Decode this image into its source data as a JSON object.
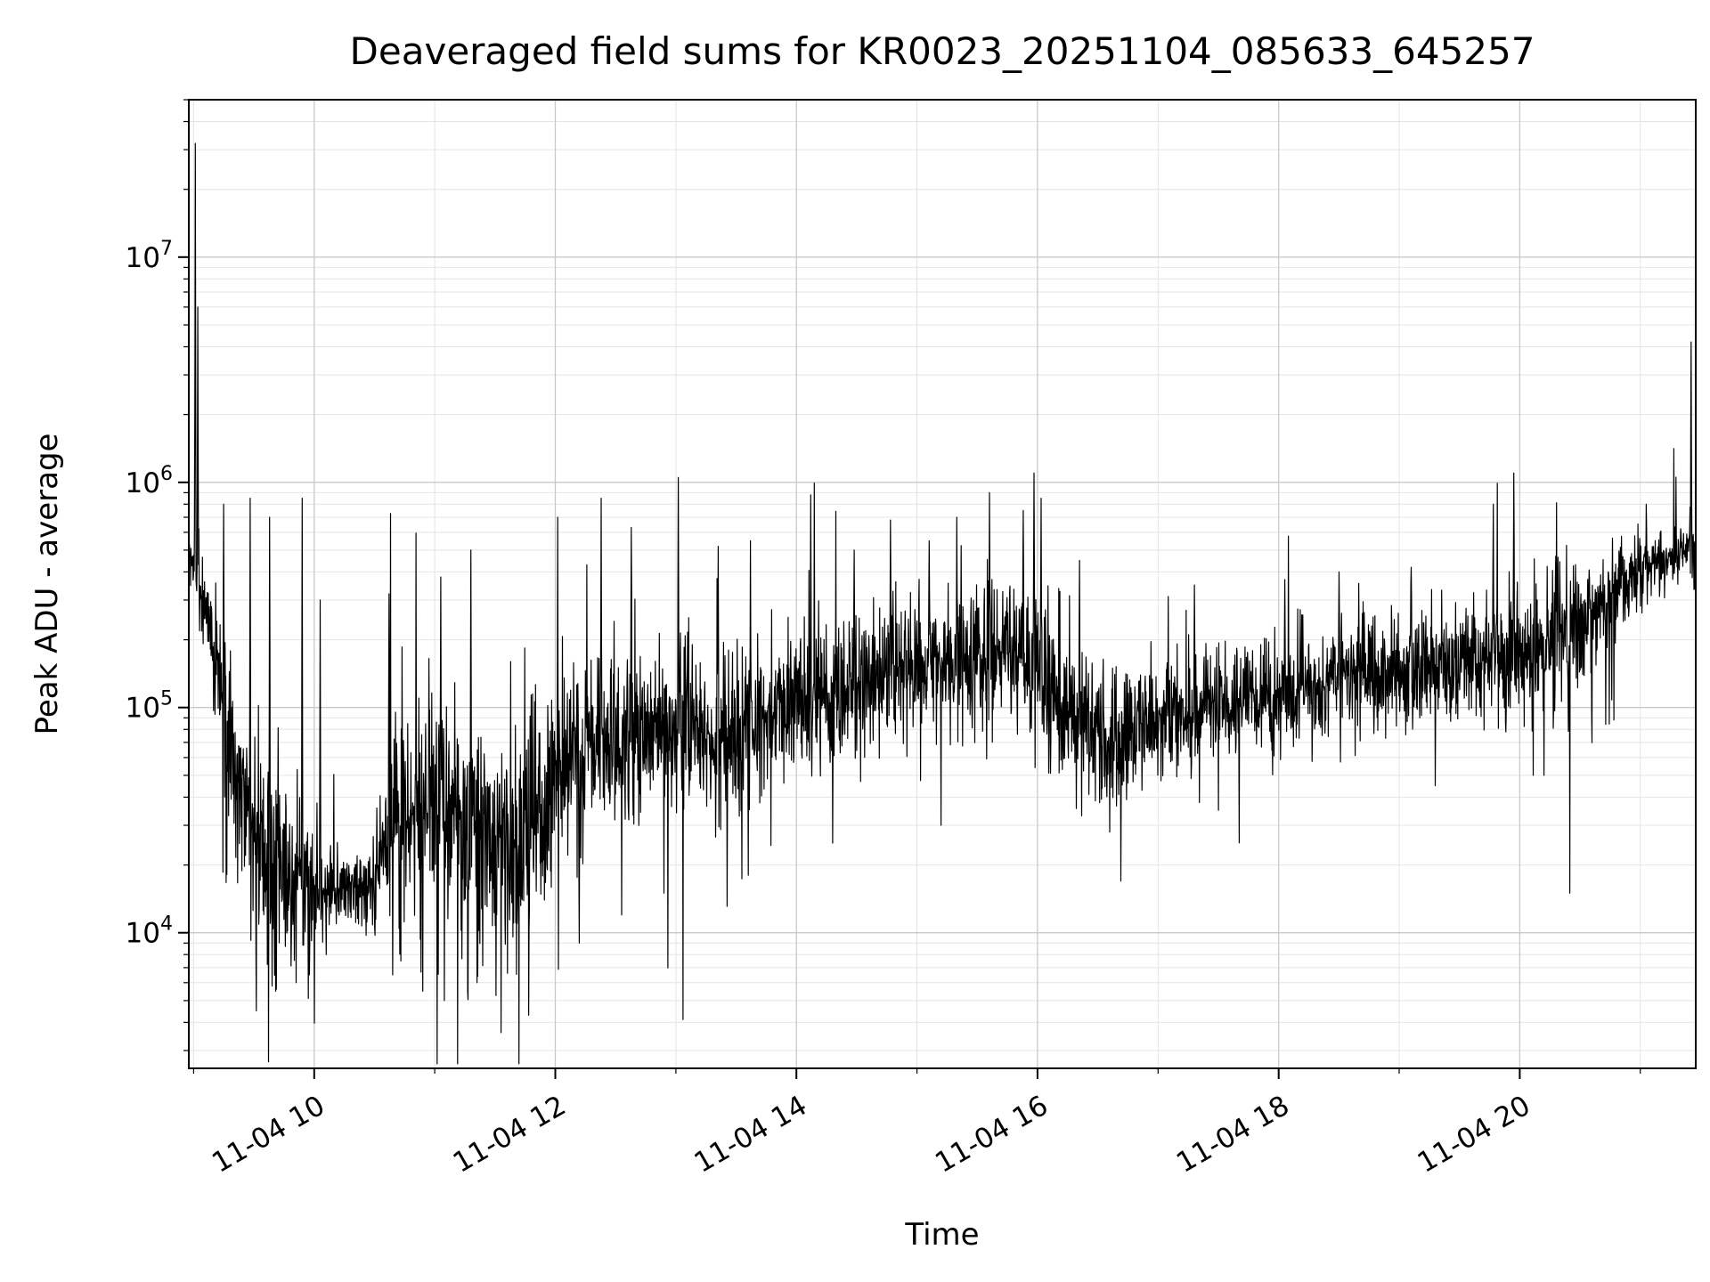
{
  "figure": {
    "background": "#ffffff"
  },
  "chart_data": {
    "type": "line",
    "title": "Deaveraged field sums for KR0023_20251104_085633_645257",
    "xlabel": "Time",
    "ylabel": "Peak ADU - average",
    "legend": null,
    "grid": {
      "on": true,
      "which": "both",
      "major": "#c9c9c9",
      "minor": "#e4e4e4"
    },
    "colors": {
      "series": "#000000",
      "axes": "#000000",
      "background": "#ffffff"
    },
    "x_unit": "hour of day on 2025-11-04",
    "x_range": [
      8.96,
      21.46
    ],
    "y_scale": "log",
    "y_log_range": [
      2500,
      50000000
    ],
    "x_ticks": [
      {
        "hour": 10,
        "label": "11-04 10"
      },
      {
        "hour": 12,
        "label": "11-04 12"
      },
      {
        "hour": 14,
        "label": "11-04 14"
      },
      {
        "hour": 16,
        "label": "11-04 16"
      },
      {
        "hour": 18,
        "label": "11-04 18"
      },
      {
        "hour": 20,
        "label": "11-04 20"
      }
    ],
    "y_ticks": [
      {
        "value": 10000,
        "base": "10",
        "exp": "4"
      },
      {
        "value": 100000,
        "base": "10",
        "exp": "5"
      },
      {
        "value": 1000000,
        "base": "10",
        "exp": "6"
      },
      {
        "value": 10000000,
        "base": "10",
        "exp": "7"
      }
    ],
    "baseline": {
      "t": [
        8.96,
        9.02,
        9.1,
        9.2,
        9.3,
        9.45,
        9.6,
        9.8,
        10.0,
        10.2,
        10.45,
        10.6,
        10.8,
        11.0,
        11.2,
        11.45,
        11.7,
        11.9,
        12.1,
        12.4,
        12.7,
        13.0,
        13.3,
        13.6,
        13.9,
        14.2,
        14.5,
        14.8,
        15.1,
        15.4,
        15.7,
        15.95,
        16.2,
        16.5,
        16.8,
        17.1,
        17.4,
        17.7,
        18.0,
        18.3,
        18.6,
        18.9,
        19.2,
        19.5,
        19.8,
        20.1,
        20.4,
        20.7,
        21.0,
        21.2,
        21.46
      ],
      "log10_median": [
        5.7,
        5.55,
        5.45,
        5.15,
        4.85,
        4.5,
        4.32,
        4.26,
        4.22,
        4.18,
        4.2,
        4.5,
        4.6,
        4.55,
        4.5,
        4.45,
        4.35,
        4.55,
        4.75,
        4.85,
        4.9,
        4.9,
        4.85,
        4.92,
        5.0,
        5.05,
        5.1,
        5.15,
        5.2,
        5.2,
        5.25,
        5.2,
        5.0,
        4.9,
        4.9,
        4.95,
        5.0,
        5.05,
        5.05,
        5.1,
        5.15,
        5.15,
        5.2,
        5.2,
        5.25,
        5.25,
        5.3,
        5.45,
        5.6,
        5.65,
        5.7
      ],
      "log10_spread": [
        0.1,
        0.12,
        0.15,
        0.25,
        0.35,
        0.45,
        0.45,
        0.38,
        0.25,
        0.16,
        0.18,
        0.48,
        0.5,
        0.5,
        0.48,
        0.46,
        0.45,
        0.4,
        0.36,
        0.34,
        0.33,
        0.32,
        0.3,
        0.3,
        0.29,
        0.29,
        0.28,
        0.28,
        0.28,
        0.28,
        0.3,
        0.32,
        0.3,
        0.28,
        0.25,
        0.22,
        0.22,
        0.22,
        0.22,
        0.22,
        0.23,
        0.23,
        0.24,
        0.24,
        0.26,
        0.28,
        0.28,
        0.22,
        0.14,
        0.13,
        0.13
      ]
    },
    "spikes_up": [
      [
        9.015,
        32000000.0
      ],
      [
        9.035,
        6000000.0
      ],
      [
        9.25,
        800000.0
      ],
      [
        9.47,
        850000.0
      ],
      [
        9.63,
        700000.0
      ],
      [
        9.9,
        850000.0
      ],
      [
        10.05,
        300000.0
      ],
      [
        10.62,
        320000.0
      ],
      [
        11.05,
        380000.0
      ],
      [
        11.3,
        500000.0
      ],
      [
        12.02,
        700000.0
      ],
      [
        12.38,
        850000.0
      ],
      [
        12.63,
        630000.0
      ],
      [
        13.02,
        1050000.0
      ],
      [
        13.35,
        520000.0
      ],
      [
        13.62,
        550000.0
      ],
      [
        14.12,
        880000.0
      ],
      [
        14.48,
        500000.0
      ],
      [
        14.78,
        680000.0
      ],
      [
        15.1,
        550000.0
      ],
      [
        15.33,
        700000.0
      ],
      [
        15.6,
        900000.0
      ],
      [
        15.88,
        750000.0
      ],
      [
        15.97,
        1100000.0
      ],
      [
        16.03,
        850000.0
      ],
      [
        16.35,
        450000.0
      ],
      [
        17.3,
        350000.0
      ],
      [
        18.05,
        370000.0
      ],
      [
        18.5,
        400000.0
      ],
      [
        19.1,
        420000.0
      ],
      [
        19.78,
        800000.0
      ],
      [
        19.95,
        1100000.0
      ],
      [
        20.3,
        470000.0
      ],
      [
        21.05,
        800000.0
      ],
      [
        21.42,
        4200000.0
      ]
    ],
    "spikes_down": [
      [
        9.52,
        4500.0
      ],
      [
        9.68,
        5500.0
      ],
      [
        9.85,
        6000.0
      ],
      [
        10.1,
        8000.0
      ],
      [
        10.65,
        6500.0
      ],
      [
        10.9,
        5500.0
      ],
      [
        11.08,
        5000.0
      ],
      [
        11.35,
        6000.0
      ],
      [
        11.55,
        3600.0
      ],
      [
        11.78,
        4300.0
      ],
      [
        12.2,
        9000.0
      ],
      [
        12.55,
        12000.0
      ],
      [
        12.9,
        15000.0
      ],
      [
        13.6,
        18000.0
      ],
      [
        14.3,
        25000.0
      ],
      [
        15.2,
        30000.0
      ],
      [
        16.6,
        28000.0
      ],
      [
        17.5,
        35000.0
      ],
      [
        19.3,
        45000.0
      ],
      [
        20.2,
        50000.0
      ]
    ],
    "sampling": {
      "points": 4200,
      "seed": 20251104
    }
  }
}
